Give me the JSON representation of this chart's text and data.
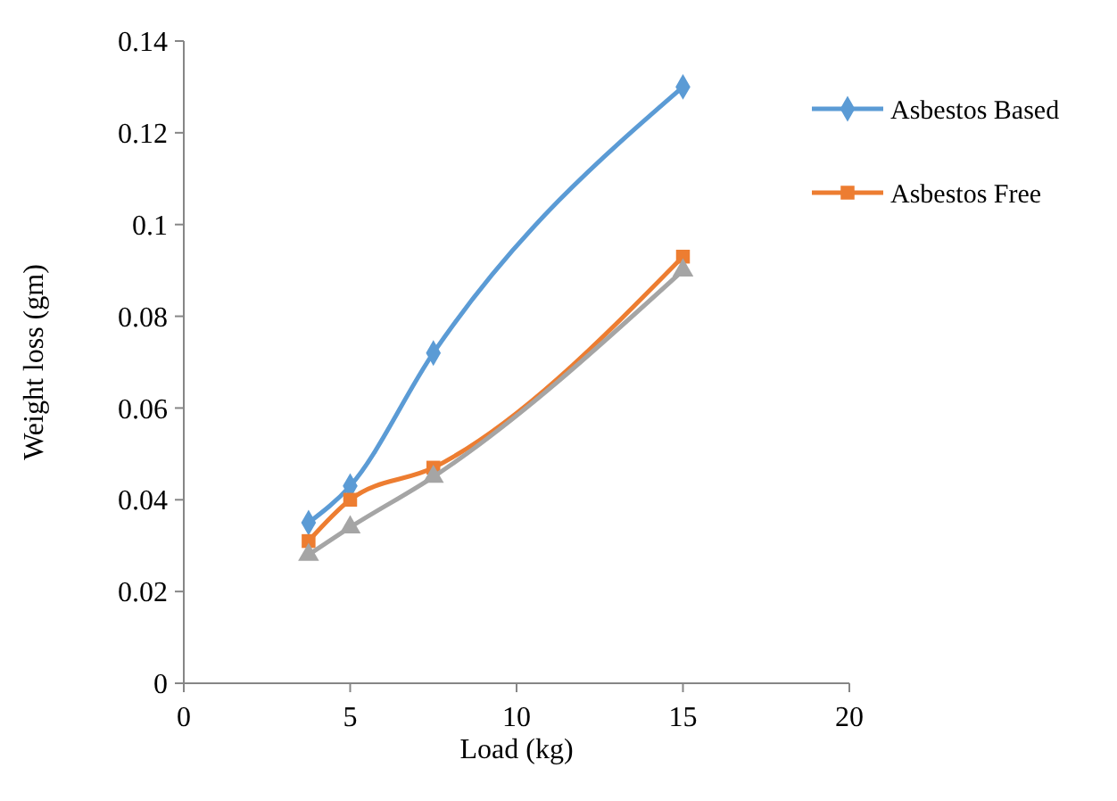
{
  "chart_data": {
    "type": "line",
    "xlabel": "Load (kg)",
    "ylabel": "Weight loss  (gm)",
    "x": [
      3.75,
      5,
      7.5,
      15
    ],
    "xlim": [
      0,
      20
    ],
    "xticks": [
      0,
      5,
      10,
      15,
      20
    ],
    "ylim": [
      0,
      0.14
    ],
    "yticks": [
      0,
      0.02,
      0.04,
      0.06,
      0.08,
      0.1,
      0.12,
      0.14
    ],
    "legend": "right",
    "grid": false,
    "series": [
      {
        "name": "Asbestos Based",
        "color": "#5b9bd5",
        "marker": "diamond",
        "values": [
          0.035,
          0.043,
          0.072,
          0.13
        ]
      },
      {
        "name": "Asbestos Free",
        "color": "#ed7d31",
        "marker": "square",
        "values": [
          0.031,
          0.04,
          0.047,
          0.093
        ]
      },
      {
        "color": "#a5a5a5",
        "marker": "triangle",
        "values": [
          0.028,
          0.034,
          0.045,
          0.09
        ]
      }
    ]
  }
}
